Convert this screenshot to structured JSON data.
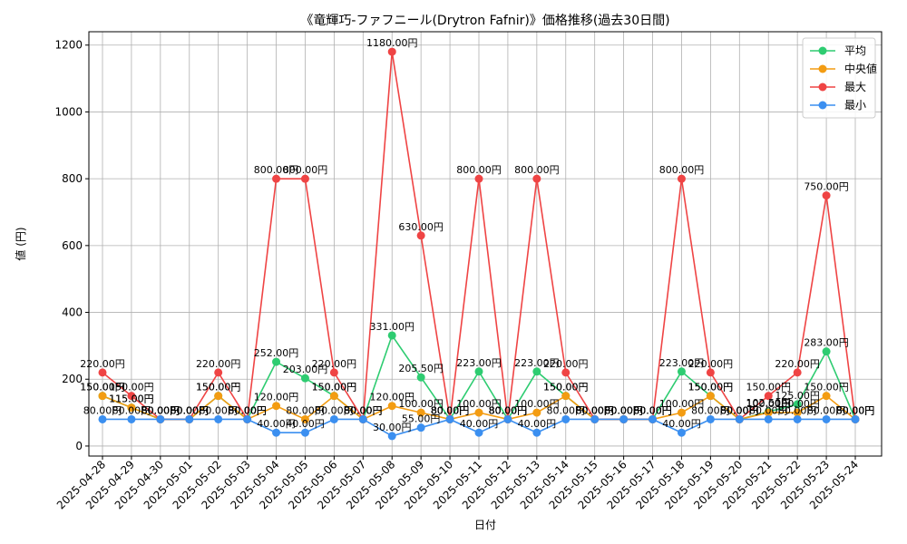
{
  "chart_data": {
    "type": "line",
    "title": "《竜輝巧-ファフニール(Drytron Fafnir)》価格推移(過去30日間)",
    "xlabel": "日付",
    "ylabel": "値 (円)",
    "ylim": [
      -30,
      1240
    ],
    "yticks": [
      0,
      200,
      400,
      600,
      800,
      1000,
      1200
    ],
    "grid": true,
    "legend_position": "top-right",
    "label_suffix": "円",
    "categories": [
      "2025-04-28",
      "2025-04-29",
      "2025-04-30",
      "2025-05-01",
      "2025-05-02",
      "2025-05-03",
      "2025-05-04",
      "2025-05-05",
      "2025-05-06",
      "2025-05-07",
      "2025-05-08",
      "2025-05-09",
      "2025-05-10",
      "2025-05-11",
      "2025-05-12",
      "2025-05-13",
      "2025-05-14",
      "2025-05-15",
      "2025-05-16",
      "2025-05-17",
      "2025-05-18",
      "2025-05-19",
      "2025-05-20",
      "2025-05-21",
      "2025-05-22",
      "2025-05-23",
      "2025-05-24"
    ],
    "series": [
      {
        "name": "平均",
        "color": "#2ecc71",
        "values": [
          150,
          115,
          80,
          80,
          150,
          80,
          252,
          203,
          150,
          80,
          331,
          205.5,
          80,
          223,
          80,
          223,
          150,
          80,
          80,
          80,
          223,
          150,
          80,
          102.5,
          125,
          283,
          80
        ]
      },
      {
        "name": "中央値",
        "color": "#f39c12",
        "values": [
          150,
          115,
          80,
          80,
          150,
          80,
          120,
          80,
          150,
          80,
          120,
          100,
          80,
          100,
          80,
          100,
          150,
          80,
          80,
          80,
          100,
          150,
          80,
          100,
          100,
          150,
          80
        ]
      },
      {
        "name": "最大",
        "color": "#ef4444",
        "values": [
          220,
          150,
          80,
          80,
          220,
          80,
          800,
          800,
          220,
          80,
          1180,
          630,
          80,
          800,
          80,
          800,
          220,
          80,
          80,
          80,
          800,
          220,
          80,
          150,
          220,
          750,
          80
        ]
      },
      {
        "name": "最小",
        "color": "#3b8ff0",
        "values": [
          80,
          80,
          80,
          80,
          80,
          80,
          40,
          40,
          80,
          80,
          30,
          55,
          80,
          40,
          80,
          40,
          80,
          80,
          80,
          80,
          40,
          80,
          80,
          80,
          80,
          80,
          80
        ]
      }
    ]
  }
}
